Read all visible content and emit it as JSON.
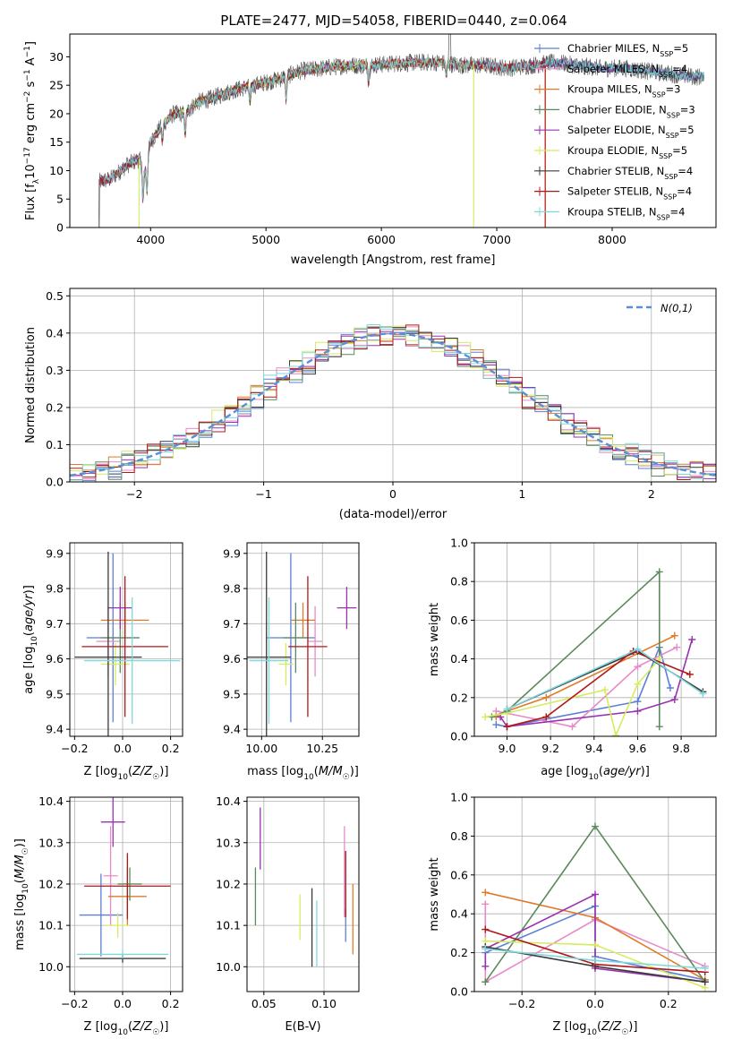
{
  "title": "PLATE=2477, MJD=54058, FIBERID=0440, z=0.064",
  "colors": {
    "Chabrier MILES": "#5b7fd6",
    "Salpeter MILES": "#e88ac7",
    "Kroupa MILES": "#e07a2a",
    "Chabrier ELODIE": "#5a8a5c",
    "Salpeter ELODIE": "#9a32b0",
    "Kroupa ELODIE": "#d4ec5e",
    "Chabrier STELIB": "#3a3a3a",
    "Salpeter STELIB": "#b01818",
    "Kroupa STELIB": "#7fd8dc",
    "normal": "#5a8fd6",
    "spectrum_dark": "#555555"
  },
  "chart_data": [
    {
      "id": "spectrum",
      "type": "line",
      "xlabel": "wavelength [Angstrom, rest frame]",
      "ylabel": "Flux [f_λ10^-17 erg cm^-2 s^-1 A^-1]",
      "xlim": [
        3300,
        8900
      ],
      "ylim": [
        0,
        34
      ],
      "xticks": [
        4000,
        5000,
        6000,
        7000,
        8000
      ],
      "yticks": [
        0,
        5,
        10,
        15,
        20,
        25,
        30
      ],
      "legend_position": "upper right",
      "legend": [
        {
          "name": "Chabrier MILES",
          "nssp": "5"
        },
        {
          "name": "Salpeter MILES",
          "nssp": "4"
        },
        {
          "name": "Kroupa MILES",
          "nssp": "3"
        },
        {
          "name": "Chabrier ELODIE",
          "nssp": "3"
        },
        {
          "name": "Salpeter ELODIE",
          "nssp": "5"
        },
        {
          "name": "Kroupa ELODIE",
          "nssp": "5"
        },
        {
          "name": "Chabrier STELIB",
          "nssp": "4"
        },
        {
          "name": "Salpeter STELIB",
          "nssp": "4"
        },
        {
          "name": "Kroupa STELIB",
          "nssp": "4"
        }
      ],
      "continuum": [
        [
          3550,
          8
        ],
        [
          3650,
          8.5
        ],
        [
          3800,
          11
        ],
        [
          3900,
          12
        ],
        [
          3950,
          10
        ],
        [
          4000,
          15
        ],
        [
          4100,
          18
        ],
        [
          4200,
          20
        ],
        [
          4300,
          20
        ],
        [
          4400,
          22
        ],
        [
          4500,
          22.5
        ],
        [
          4700,
          24
        ],
        [
          4900,
          25
        ],
        [
          5100,
          26
        ],
        [
          5300,
          27.5
        ],
        [
          5500,
          28
        ],
        [
          5700,
          28.5
        ],
        [
          5900,
          28.5
        ],
        [
          6100,
          28.8
        ],
        [
          6300,
          29
        ],
        [
          6500,
          29
        ],
        [
          6700,
          28.5
        ],
        [
          6900,
          28.5
        ],
        [
          7100,
          28
        ],
        [
          7300,
          28.5
        ],
        [
          7500,
          29
        ],
        [
          7700,
          28.5
        ],
        [
          7900,
          28
        ],
        [
          8100,
          28
        ],
        [
          8300,
          27.5
        ],
        [
          8500,
          27
        ],
        [
          8700,
          26.5
        ],
        [
          8800,
          26.5
        ]
      ]
    },
    {
      "id": "residuals",
      "type": "line",
      "xlabel": "(data-model)/error",
      "ylabel": "Normed distribution",
      "xlim": [
        -2.5,
        2.5
      ],
      "ylim": [
        0,
        0.52
      ],
      "xticks": [
        -2,
        -1,
        0,
        1,
        2
      ],
      "yticks": [
        0.0,
        0.1,
        0.2,
        0.3,
        0.4,
        0.5
      ],
      "legend_label": "N(0,1)",
      "legend_position": "upper right"
    },
    {
      "id": "age_vs_Z",
      "type": "scatter",
      "xlabel": "Z [log10(Z/Z☉)]",
      "ylabel": "age [log10(age/yr)]",
      "xlim": [
        -0.22,
        0.25
      ],
      "ylim": [
        9.38,
        9.93
      ],
      "xticks": [
        -0.2,
        0.0,
        0.2
      ],
      "yticks": [
        9.4,
        9.5,
        9.6,
        9.7,
        9.8,
        9.9
      ],
      "points": [
        {
          "model": "Chabrier MILES",
          "x": -0.04,
          "xerr": 0.11,
          "y": 9.66,
          "yerr": 0.24
        },
        {
          "model": "Salpeter MILES",
          "x": -0.06,
          "xerr": 0.05,
          "y": 9.65,
          "yerr": 0.1
        },
        {
          "model": "Kroupa MILES",
          "x": 0.01,
          "xerr": 0.1,
          "y": 9.71,
          "yerr": 0.05
        },
        {
          "model": "Chabrier ELODIE",
          "x": -0.01,
          "xerr": 0.08,
          "y": 9.66,
          "yerr": 0.1
        },
        {
          "model": "Salpeter ELODIE",
          "x": -0.01,
          "xerr": 0.05,
          "y": 9.745,
          "yerr": 0.06
        },
        {
          "model": "Kroupa ELODIE",
          "x": -0.03,
          "xerr": 0.06,
          "y": 9.585,
          "yerr": 0.06
        },
        {
          "model": "Chabrier STELIB",
          "x": -0.06,
          "xerr": 0.14,
          "y": 9.605,
          "yerr": 0.3
        },
        {
          "model": "Salpeter STELIB",
          "x": 0.01,
          "xerr": 0.18,
          "y": 9.635,
          "yerr": 0.2
        },
        {
          "model": "Kroupa STELIB",
          "x": 0.04,
          "xerr": 0.2,
          "y": 9.595,
          "yerr": 0.18
        }
      ]
    },
    {
      "id": "age_vs_mass",
      "type": "scatter",
      "xlabel": "mass [log10(M/M☉)]",
      "ylabel": "",
      "xlim": [
        9.94,
        10.4
      ],
      "ylim": [
        9.38,
        9.93
      ],
      "xticks": [
        10.0,
        10.25
      ],
      "tick_labels": [
        "10.00",
        "10.25"
      ],
      "yticks": [
        9.4,
        9.5,
        9.6,
        9.7,
        9.8,
        9.9
      ],
      "points": [
        {
          "model": "Chabrier MILES",
          "x": 10.12,
          "xerr": 0.1,
          "y": 9.66,
          "yerr": 0.24
        },
        {
          "model": "Salpeter MILES",
          "x": 10.22,
          "xerr": 0.03,
          "y": 9.65,
          "yerr": 0.1
        },
        {
          "model": "Kroupa MILES",
          "x": 10.17,
          "xerr": 0.05,
          "y": 9.71,
          "yerr": 0.05
        },
        {
          "model": "Chabrier ELODIE",
          "x": 10.14,
          "xerr": 0.05,
          "y": 9.66,
          "yerr": 0.1
        },
        {
          "model": "Salpeter ELODIE",
          "x": 10.35,
          "xerr": 0.04,
          "y": 9.745,
          "yerr": 0.06
        },
        {
          "model": "Kroupa ELODIE",
          "x": 10.1,
          "xerr": 0.03,
          "y": 9.585,
          "yerr": 0.06
        },
        {
          "model": "Chabrier STELIB",
          "x": 10.02,
          "xerr": 0.1,
          "y": 9.605,
          "yerr": 0.3
        },
        {
          "model": "Salpeter STELIB",
          "x": 10.19,
          "xerr": 0.08,
          "y": 9.635,
          "yerr": 0.2
        },
        {
          "model": "Kroupa STELIB",
          "x": 10.03,
          "xerr": 0.08,
          "y": 9.595,
          "yerr": 0.18
        }
      ]
    },
    {
      "id": "mass_weight_vs_age",
      "type": "line",
      "xlabel": "age [log10(age/yr)]",
      "ylabel": "mass weight",
      "xlim": [
        8.85,
        9.96
      ],
      "ylim": [
        0,
        1
      ],
      "xticks": [
        9.0,
        9.2,
        9.4,
        9.6,
        9.8
      ],
      "yticks": [
        0.0,
        0.2,
        0.4,
        0.6,
        0.8,
        1.0
      ],
      "series": [
        {
          "model": "Chabrier MILES",
          "x": [
            8.95,
            9.0,
            9.6,
            9.7,
            9.75
          ],
          "y": [
            0.06,
            0.05,
            0.18,
            0.46,
            0.25
          ]
        },
        {
          "model": "Salpeter MILES",
          "x": [
            8.95,
            9.3,
            9.6,
            9.78
          ],
          "y": [
            0.13,
            0.05,
            0.36,
            0.46
          ]
        },
        {
          "model": "Kroupa MILES",
          "x": [
            8.95,
            9.0,
            9.18,
            9.77
          ],
          "y": [
            0.1,
            0.13,
            0.2,
            0.52
          ]
        },
        {
          "model": "Chabrier ELODIE",
          "x": [
            8.93,
            9.0,
            9.7,
            9.7
          ],
          "y": [
            0.1,
            0.13,
            0.85,
            0.05
          ]
        },
        {
          "model": "Salpeter ELODIE",
          "x": [
            8.97,
            9.0,
            9.6,
            9.77,
            9.85
          ],
          "y": [
            0.1,
            0.05,
            0.13,
            0.19,
            0.5
          ]
        },
        {
          "model": "Kroupa ELODIE",
          "x": [
            8.9,
            9.0,
            9.45,
            9.5,
            9.6,
            9.7
          ],
          "y": [
            0.1,
            0.12,
            0.24,
            0.005,
            0.27,
            0.4
          ]
        },
        {
          "model": "Chabrier STELIB",
          "x": [
            9.0,
            9.6,
            9.9
          ],
          "y": [
            0.14,
            0.44,
            0.23
          ]
        },
        {
          "model": "Salpeter STELIB",
          "x": [
            9.0,
            9.18,
            9.58,
            9.84
          ],
          "y": [
            0.05,
            0.1,
            0.44,
            0.32
          ]
        },
        {
          "model": "Kroupa STELIB",
          "x": [
            9.0,
            9.6,
            9.9
          ],
          "y": [
            0.14,
            0.45,
            0.22
          ]
        }
      ]
    },
    {
      "id": "mass_vs_Z",
      "type": "scatter",
      "xlabel": "Z [log10(Z/Z☉)]",
      "ylabel": "mass [log10(M/M☉)]",
      "xlim": [
        -0.22,
        0.25
      ],
      "ylim": [
        9.94,
        10.41
      ],
      "xticks": [
        -0.2,
        0.0,
        0.2
      ],
      "yticks": [
        10.0,
        10.1,
        10.2,
        10.3,
        10.4
      ],
      "points": [
        {
          "model": "Chabrier MILES",
          "x": -0.09,
          "xerr": 0.09,
          "y": 10.125,
          "yerr": 0.1
        },
        {
          "model": "Salpeter MILES",
          "x": -0.05,
          "xerr": 0.03,
          "y": 10.22,
          "yerr": 0.12
        },
        {
          "model": "Kroupa MILES",
          "x": 0.02,
          "xerr": 0.08,
          "y": 10.17,
          "yerr": 0.07
        },
        {
          "model": "Chabrier ELODIE",
          "x": 0.03,
          "xerr": 0.05,
          "y": 10.2,
          "yerr": 0.04
        },
        {
          "model": "Salpeter ELODIE",
          "x": -0.04,
          "xerr": 0.05,
          "y": 10.35,
          "yerr": 0.06
        },
        {
          "model": "Kroupa ELODIE",
          "x": -0.02,
          "xerr": 0.05,
          "y": 10.1,
          "yerr": 0.03
        },
        {
          "model": "Chabrier STELIB",
          "x": 0.0,
          "xerr": 0.18,
          "y": 10.02,
          "yerr": 0.01
        },
        {
          "model": "Salpeter STELIB",
          "x": 0.02,
          "xerr": 0.18,
          "y": 10.195,
          "yerr": 0.08
        },
        {
          "model": "Kroupa STELIB",
          "x": 0.0,
          "xerr": 0.19,
          "y": 10.03,
          "yerr": 0.01
        }
      ]
    },
    {
      "id": "mass_vs_ebv",
      "type": "scatter",
      "xlabel": "E(B-V)",
      "ylabel": "",
      "xlim": [
        0.036,
        0.129
      ],
      "ylim": [
        9.94,
        10.41
      ],
      "xticks": [
        0.05,
        0.1
      ],
      "tick_labels": [
        "0.05",
        "0.10"
      ],
      "yticks": [
        10.0,
        10.1,
        10.2,
        10.3,
        10.4
      ],
      "points": [
        {
          "model": "Chabrier ELODIE",
          "x": 0.043,
          "y": 10.17,
          "yerr": 0.07
        },
        {
          "model": "Salpeter ELODIE",
          "x": 0.047,
          "y": 10.31,
          "yerr": 0.075
        },
        {
          "model": "Kroupa ELODIE",
          "x": 0.08,
          "y": 10.12,
          "yerr": 0.055
        },
        {
          "model": "Chabrier STELIB",
          "x": 0.09,
          "y": 10.095,
          "yerr": 0.095
        },
        {
          "model": "Kroupa STELIB",
          "x": 0.094,
          "y": 10.08,
          "yerr": 0.08
        },
        {
          "model": "Salpeter MILES",
          "x": 0.117,
          "y": 10.23,
          "yerr": 0.11
        },
        {
          "model": "Chabrier MILES",
          "x": 0.118,
          "y": 10.1,
          "yerr": 0.04
        },
        {
          "model": "Salpeter STELIB",
          "x": 0.118,
          "y": 10.2,
          "yerr": 0.08
        },
        {
          "model": "Kroupa MILES",
          "x": 0.124,
          "y": 10.115,
          "yerr": 0.085
        }
      ]
    },
    {
      "id": "mass_weight_vs_Z",
      "type": "line",
      "xlabel": "Z [log10(Z/Z☉)]",
      "ylabel": "mass weight",
      "xlim": [
        -0.33,
        0.33
      ],
      "ylim": [
        0,
        1
      ],
      "xticks": [
        -0.2,
        0.0,
        0.2
      ],
      "yticks": [
        0.0,
        0.2,
        0.4,
        0.6,
        0.8,
        1.0
      ],
      "series": [
        {
          "model": "Chabrier MILES",
          "x": [
            -0.3,
            0.0,
            0.0,
            0.3
          ],
          "y": [
            0.2,
            0.44,
            0.18,
            0.06
          ]
        },
        {
          "model": "Salpeter MILES",
          "x": [
            -0.3,
            -0.3,
            0.0,
            0.3
          ],
          "y": [
            0.45,
            0.05,
            0.37,
            0.13
          ]
        },
        {
          "model": "Kroupa MILES",
          "x": [
            -0.3,
            0.0,
            0.3
          ],
          "y": [
            0.51,
            0.38,
            0.06
          ]
        },
        {
          "model": "Chabrier ELODIE",
          "x": [
            -0.3,
            0.0,
            0.3
          ],
          "y": [
            0.05,
            0.85,
            0.05
          ]
        },
        {
          "model": "Salpeter ELODIE",
          "x": [
            -0.3,
            -0.3,
            0.0,
            0.0,
            0.3
          ],
          "y": [
            0.13,
            0.22,
            0.5,
            0.12,
            0.05
          ]
        },
        {
          "model": "Kroupa ELODIE",
          "x": [
            -0.3,
            0.0,
            0.3
          ],
          "y": [
            0.26,
            0.24,
            0.02
          ]
        },
        {
          "model": "Chabrier STELIB",
          "x": [
            -0.3,
            0.0,
            0.3
          ],
          "y": [
            0.23,
            0.13,
            0.05
          ]
        },
        {
          "model": "Salpeter STELIB",
          "x": [
            -0.3,
            0.0,
            0.3
          ],
          "y": [
            0.32,
            0.14,
            0.1
          ]
        },
        {
          "model": "Kroupa STELIB",
          "x": [
            -0.3,
            0.0,
            0.3
          ],
          "y": [
            0.22,
            0.16,
            0.12
          ]
        }
      ]
    }
  ]
}
